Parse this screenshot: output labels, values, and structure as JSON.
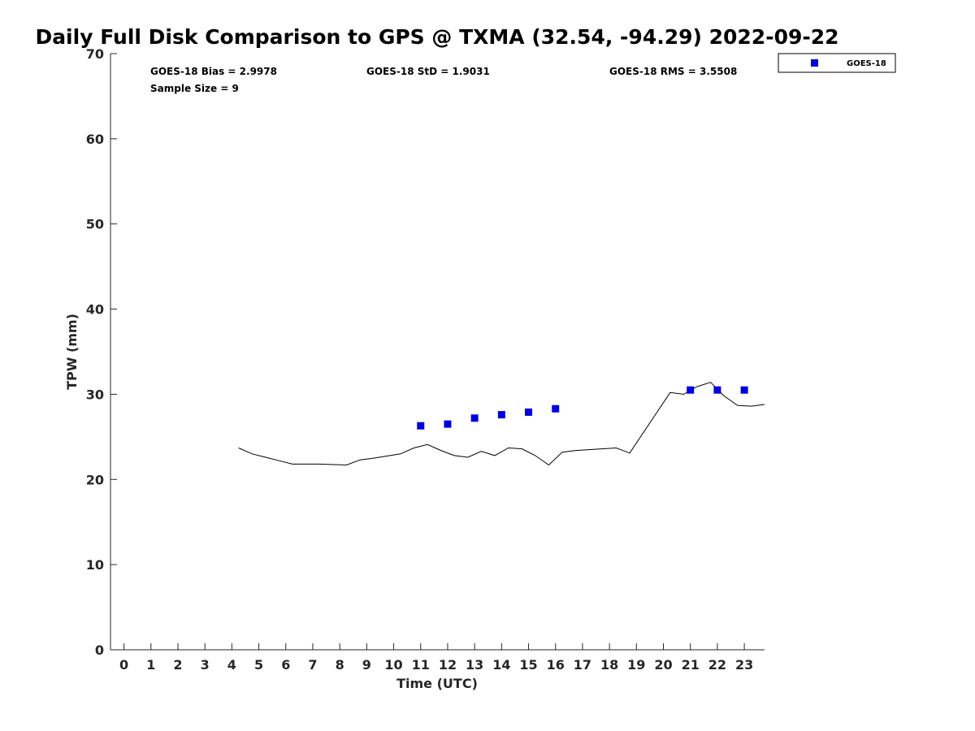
{
  "chart_data": {
    "type": "scatter",
    "title": "Daily Full Disk Comparison to GPS @ TXMA (32.54, -94.29) 2022-09-22",
    "xlabel": "Time (UTC)",
    "ylabel": "TPW (mm)",
    "xlim": [
      -0.5,
      23.75
    ],
    "ylim": [
      0,
      70
    ],
    "x_ticks": [
      0,
      1,
      2,
      3,
      4,
      5,
      6,
      7,
      8,
      9,
      10,
      11,
      12,
      13,
      14,
      15,
      16,
      17,
      18,
      19,
      20,
      21,
      22,
      23
    ],
    "y_ticks": [
      0,
      10,
      20,
      30,
      40,
      50,
      60,
      70
    ],
    "grid": false,
    "legend_position": "top-right, outside plot",
    "stats": {
      "bias": "GOES-18 Bias = 2.9978",
      "std": "GOES-18 StD = 1.9031",
      "rms": "GOES-18 RMS = 3.5508",
      "sample": "Sample Size = 9"
    },
    "series": [
      {
        "name": "GOES-18",
        "kind": "scatter",
        "marker": "square",
        "color": "#0000dd",
        "points": [
          [
            11,
            26.3
          ],
          [
            12,
            26.5
          ],
          [
            13,
            27.2
          ],
          [
            14,
            27.6
          ],
          [
            15,
            27.9
          ],
          [
            16,
            28.3
          ],
          [
            21,
            30.5
          ],
          [
            22,
            30.5
          ],
          [
            23,
            30.5
          ]
        ]
      },
      {
        "kind": "line",
        "color": "#000000",
        "points": [
          [
            4.25,
            23.7
          ],
          [
            4.75,
            23.0
          ],
          [
            5.25,
            22.6
          ],
          [
            5.75,
            22.2
          ],
          [
            6.25,
            21.8
          ],
          [
            7.25,
            21.8
          ],
          [
            8.25,
            21.7
          ],
          [
            8.75,
            22.3
          ],
          [
            9.25,
            22.5
          ],
          [
            10.25,
            23.0
          ],
          [
            10.75,
            23.7
          ],
          [
            11.25,
            24.1
          ],
          [
            11.75,
            23.4
          ],
          [
            12.25,
            22.8
          ],
          [
            12.75,
            22.6
          ],
          [
            13.25,
            23.3
          ],
          [
            13.75,
            22.8
          ],
          [
            14.25,
            23.7
          ],
          [
            14.75,
            23.6
          ],
          [
            15.25,
            22.8
          ],
          [
            15.75,
            21.7
          ],
          [
            16.25,
            23.2
          ],
          [
            16.75,
            23.4
          ],
          [
            18.25,
            23.7
          ],
          [
            18.75,
            23.1
          ],
          [
            20.25,
            30.2
          ],
          [
            20.75,
            30.0
          ],
          [
            21.25,
            30.9
          ],
          [
            21.75,
            31.4
          ],
          [
            22.25,
            29.8
          ],
          [
            22.75,
            28.7
          ],
          [
            23.25,
            28.6
          ],
          [
            23.75,
            28.8
          ]
        ]
      }
    ]
  }
}
